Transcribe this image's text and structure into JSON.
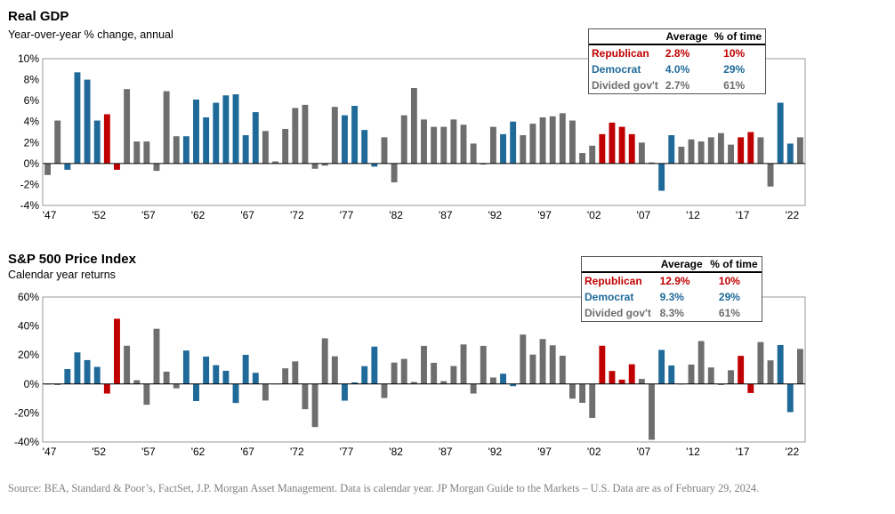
{
  "colors": {
    "Republican": "#c00000",
    "Democrat": "#1f6a99",
    "Divided": "#6e6e6e"
  },
  "party_codes": {
    "R": "Republican",
    "D": "Democrat",
    "G": "Divided"
  },
  "years": [
    1947,
    1948,
    1949,
    1950,
    1951,
    1952,
    1953,
    1954,
    1955,
    1956,
    1957,
    1958,
    1959,
    1960,
    1961,
    1962,
    1963,
    1964,
    1965,
    1966,
    1967,
    1968,
    1969,
    1970,
    1971,
    1972,
    1973,
    1974,
    1975,
    1976,
    1977,
    1978,
    1979,
    1980,
    1981,
    1982,
    1983,
    1984,
    1985,
    1986,
    1987,
    1988,
    1989,
    1990,
    1991,
    1992,
    1993,
    1994,
    1995,
    1996,
    1997,
    1998,
    1999,
    2000,
    2001,
    2002,
    2003,
    2004,
    2005,
    2006,
    2007,
    2008,
    2009,
    2010,
    2011,
    2012,
    2013,
    2014,
    2015,
    2016,
    2017,
    2018,
    2019,
    2020,
    2021,
    2022,
    2023
  ],
  "parties": [
    "G",
    "G",
    "D",
    "D",
    "D",
    "D",
    "R",
    "R",
    "G",
    "G",
    "G",
    "G",
    "G",
    "G",
    "D",
    "D",
    "D",
    "D",
    "D",
    "D",
    "D",
    "D",
    "G",
    "G",
    "G",
    "G",
    "G",
    "G",
    "G",
    "G",
    "D",
    "D",
    "D",
    "D",
    "G",
    "G",
    "G",
    "G",
    "G",
    "G",
    "G",
    "G",
    "G",
    "G",
    "G",
    "G",
    "D",
    "D",
    "G",
    "G",
    "G",
    "G",
    "G",
    "G",
    "G",
    "G",
    "R",
    "R",
    "R",
    "R",
    "G",
    "G",
    "D",
    "D",
    "G",
    "G",
    "G",
    "G",
    "G",
    "G",
    "R",
    "R",
    "G",
    "G",
    "D",
    "D",
    "G"
  ],
  "chart_data": [
    {
      "type": "bar",
      "title": "Real GDP",
      "subtitle": "Year-over-year % change, annual",
      "ylim": [
        -4,
        10
      ],
      "yticks": [
        -4,
        -2,
        0,
        2,
        4,
        6,
        8,
        10
      ],
      "ytick_labels": [
        "-4%",
        "-2%",
        "0%",
        "2%",
        "4%",
        "6%",
        "8%",
        "10%"
      ],
      "xtick_labels": [
        "'47",
        "'52",
        "'57",
        "'62",
        "'67",
        "'72",
        "'77",
        "'82",
        "'87",
        "'92",
        "'97",
        "'02",
        "'07",
        "'12",
        "'17",
        "'22"
      ],
      "values": [
        -1.1,
        4.1,
        -0.6,
        8.7,
        8.0,
        4.1,
        4.7,
        -0.6,
        7.1,
        2.1,
        2.1,
        -0.7,
        6.9,
        2.6,
        2.6,
        6.1,
        4.4,
        5.8,
        6.5,
        6.6,
        2.7,
        4.9,
        3.1,
        0.2,
        3.3,
        5.3,
        5.6,
        -0.5,
        -0.2,
        5.4,
        4.6,
        5.5,
        3.2,
        -0.3,
        2.5,
        -1.8,
        4.6,
        7.2,
        4.2,
        3.5,
        3.5,
        4.2,
        3.7,
        1.9,
        -0.1,
        3.5,
        2.8,
        4.0,
        2.7,
        3.8,
        4.4,
        4.5,
        4.8,
        4.1,
        1.0,
        1.7,
        2.8,
        3.9,
        3.5,
        2.8,
        2.0,
        0.1,
        -2.6,
        2.7,
        1.6,
        2.3,
        2.1,
        2.5,
        2.9,
        1.8,
        2.5,
        3.0,
        2.5,
        -2.2,
        5.8,
        1.9,
        2.5
      ],
      "legend": {
        "header_average": "Average",
        "header_time": "% of time",
        "rows": [
          {
            "party": "Republican",
            "label": "Republican",
            "average": "2.8%",
            "time": "10%"
          },
          {
            "party": "Democrat",
            "label": "Democrat",
            "average": "4.0%",
            "time": "29%"
          },
          {
            "party": "Divided",
            "label": "Divided gov't",
            "average": "2.7%",
            "time": "61%"
          }
        ]
      }
    },
    {
      "type": "bar",
      "title": "S&P 500 Price Index",
      "subtitle": "Calendar year returns",
      "ylim": [
        -40,
        60
      ],
      "yticks": [
        -40,
        -20,
        0,
        20,
        40,
        60
      ],
      "ytick_labels": [
        "-40%",
        "-20%",
        "0%",
        "20%",
        "40%",
        "60%"
      ],
      "xtick_labels": [
        "'47",
        "'52",
        "'57",
        "'62",
        "'67",
        "'72",
        "'77",
        "'82",
        "'87",
        "'92",
        "'97",
        "'02",
        "'07",
        "'12",
        "'17",
        "'22"
      ],
      "values": [
        0.0,
        -0.7,
        10.3,
        21.8,
        16.5,
        11.8,
        -6.6,
        45.0,
        26.4,
        2.6,
        -14.3,
        38.1,
        8.5,
        -3.0,
        23.1,
        -11.8,
        18.9,
        13.0,
        9.1,
        -13.1,
        20.1,
        7.7,
        -11.4,
        0.1,
        10.8,
        15.6,
        -17.4,
        -29.7,
        31.5,
        19.1,
        -11.5,
        1.1,
        12.3,
        25.8,
        -9.7,
        14.8,
        17.3,
        1.4,
        26.3,
        14.6,
        2.0,
        12.4,
        27.3,
        -6.6,
        26.3,
        4.5,
        7.1,
        -1.5,
        34.1,
        20.3,
        31.0,
        26.7,
        19.5,
        -10.1,
        -13.0,
        -23.4,
        26.4,
        9.0,
        3.0,
        13.6,
        3.5,
        -38.5,
        23.5,
        12.8,
        0.0,
        13.4,
        29.6,
        11.4,
        -0.7,
        9.5,
        19.4,
        -6.2,
        28.9,
        16.3,
        26.9,
        -19.4,
        24.2
      ],
      "legend": {
        "header_average": "Average",
        "header_time": "% of time",
        "rows": [
          {
            "party": "Republican",
            "label": "Republican",
            "average": "12.9%",
            "time": "10%"
          },
          {
            "party": "Democrat",
            "label": "Democrat",
            "average": "9.3%",
            "time": "29%"
          },
          {
            "party": "Divided",
            "label": "Divided gov't",
            "average": "8.3%",
            "time": "61%"
          }
        ]
      }
    }
  ],
  "source": "Source: BEA, Standard & Poor’s, FactSet, J.P. Morgan Asset Management. Data is calendar year. JP Morgan Guide to the Markets – U.S. Data are as of February 29, 2024."
}
